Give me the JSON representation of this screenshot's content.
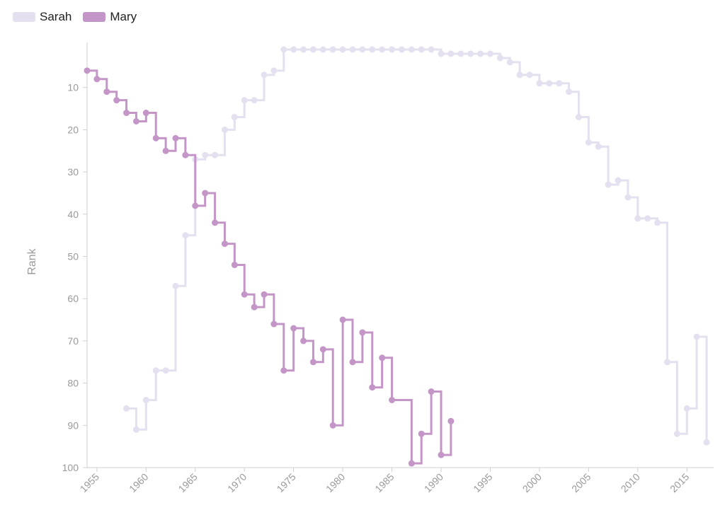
{
  "chart_data": {
    "type": "line",
    "step": true,
    "title": "",
    "xlabel": "",
    "ylabel": "Rank",
    "xlim": [
      1954,
      2017
    ],
    "ylim": [
      100,
      1
    ],
    "y_inverted": true,
    "x_ticks": [
      1955,
      1960,
      1965,
      1970,
      1975,
      1980,
      1985,
      1990,
      1995,
      2000,
      2005,
      2010,
      2015
    ],
    "y_ticks": [
      10,
      20,
      30,
      40,
      50,
      60,
      70,
      80,
      90,
      100
    ],
    "legend_position": "top-left",
    "series": [
      {
        "name": "Sarah",
        "color": "#e4e0ef",
        "x": [
          1958,
          1959,
          1960,
          1961,
          1962,
          1963,
          1964,
          1965,
          1966,
          1967,
          1968,
          1969,
          1970,
          1971,
          1972,
          1973,
          1974,
          1975,
          1976,
          1977,
          1978,
          1979,
          1980,
          1981,
          1982,
          1983,
          1984,
          1985,
          1986,
          1987,
          1988,
          1989,
          1990,
          1991,
          1992,
          1993,
          1994,
          1995,
          1996,
          1997,
          1998,
          1999,
          2000,
          2001,
          2002,
          2003,
          2004,
          2005,
          2006,
          2007,
          2008,
          2009,
          2010,
          2011,
          2012,
          2013,
          2014,
          2015,
          2016,
          2017
        ],
        "values": [
          86,
          91,
          84,
          77,
          77,
          57,
          45,
          27,
          26,
          26,
          20,
          17,
          13,
          13,
          7,
          6,
          1,
          1,
          1,
          1,
          1,
          1,
          1,
          1,
          1,
          1,
          1,
          1,
          1,
          1,
          1,
          1,
          2,
          2,
          2,
          2,
          2,
          2,
          3,
          4,
          7,
          7,
          9,
          9,
          9,
          11,
          17,
          23,
          24,
          33,
          32,
          36,
          41,
          41,
          42,
          75,
          92,
          86,
          69,
          94
        ]
      },
      {
        "name": "Mary",
        "color": "#c496c8",
        "x": [
          1954,
          1955,
          1956,
          1957,
          1958,
          1959,
          1960,
          1961,
          1962,
          1963,
          1964,
          1965,
          1966,
          1967,
          1968,
          1969,
          1970,
          1971,
          1972,
          1973,
          1974,
          1975,
          1976,
          1977,
          1978,
          1979,
          1980,
          1981,
          1982,
          1983,
          1984,
          1985,
          1987,
          1988,
          1989,
          1990,
          1991
        ],
        "values": [
          6,
          8,
          11,
          13,
          16,
          18,
          16,
          22,
          25,
          22,
          26,
          38,
          35,
          42,
          47,
          52,
          59,
          62,
          59,
          66,
          77,
          67,
          70,
          75,
          72,
          90,
          65,
          75,
          68,
          81,
          74,
          84,
          99,
          92,
          82,
          97,
          89
        ]
      }
    ]
  }
}
